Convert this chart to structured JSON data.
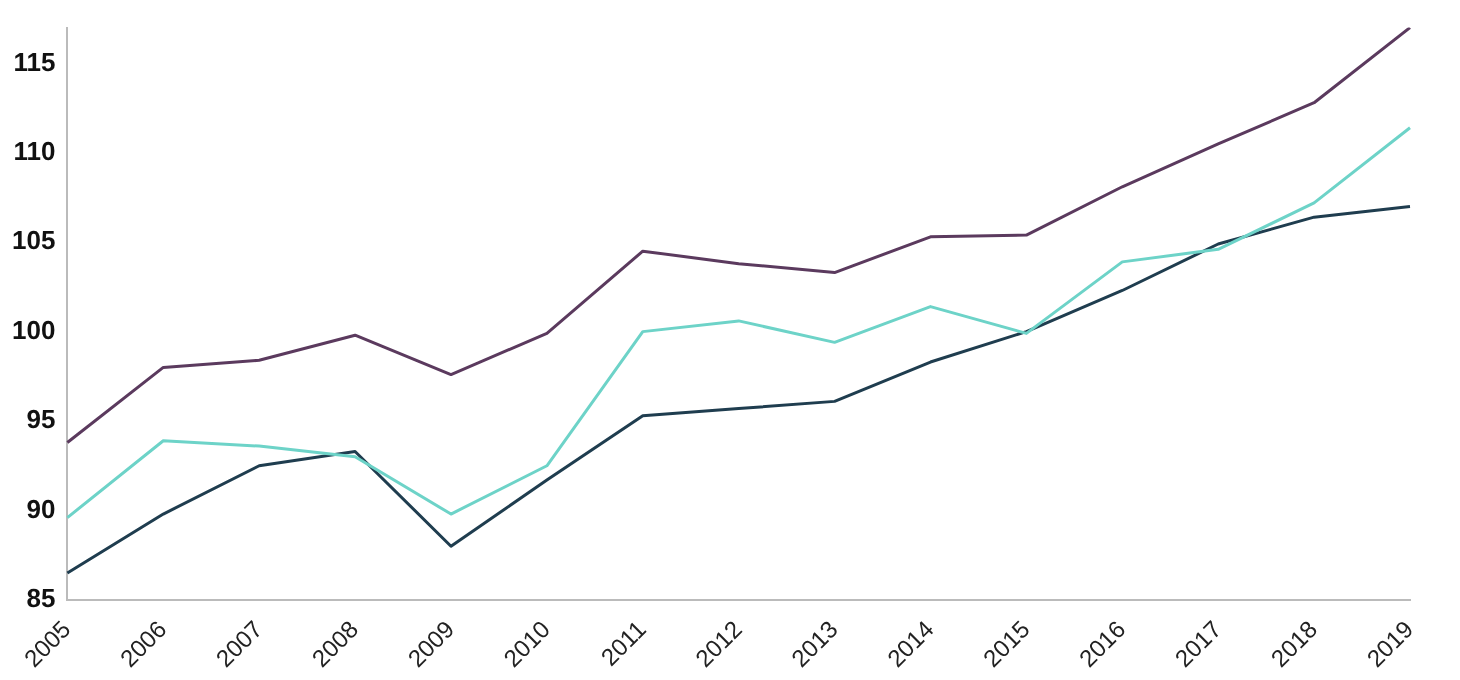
{
  "chart_data": {
    "type": "line",
    "categories": [
      "2005",
      "2006",
      "2007",
      "2008",
      "2009",
      "2010",
      "2011",
      "2012",
      "2013",
      "2014",
      "2015",
      "2016",
      "2017",
      "2018",
      "2019"
    ],
    "series": [
      {
        "color": "#5b3a5e",
        "values": [
          93.8,
          98.0,
          98.4,
          99.8,
          97.6,
          99.9,
          104.5,
          103.8,
          103.3,
          105.3,
          105.4,
          108.1,
          110.5,
          112.8,
          117
        ]
      },
      {
        "color": "#6dd3c8",
        "values": [
          89.6,
          93.9,
          93.6,
          93.0,
          89.8,
          92.5,
          100.0,
          100.6,
          99.4,
          101.4,
          99.9,
          103.9,
          104.6,
          107.2,
          111.4
        ]
      },
      {
        "color": "#1f3d4f",
        "values": [
          86.5,
          89.8,
          92.5,
          93.3,
          88.0,
          91.7,
          95.3,
          95.7,
          96.1,
          98.3,
          100.0,
          102.3,
          104.9,
          106.4,
          107.0
        ]
      }
    ],
    "ylim": [
      85,
      117
    ],
    "yticks": [
      85,
      90,
      95,
      100,
      105,
      110,
      115
    ],
    "grid": false,
    "legend": false,
    "marker": "none",
    "line_style": "solid"
  }
}
